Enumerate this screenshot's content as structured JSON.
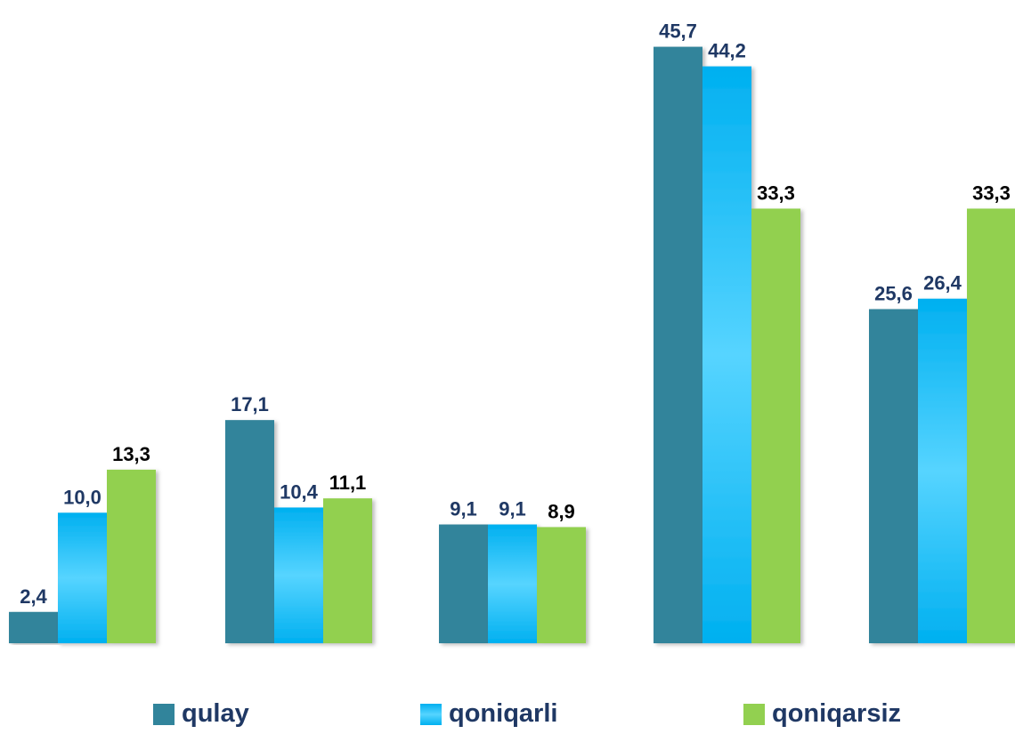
{
  "chart_data": {
    "type": "bar",
    "categories": [
      "",
      "",
      "",
      "",
      ""
    ],
    "series": [
      {
        "name": "qulay",
        "values": [
          2.4,
          17.1,
          9.1,
          45.7,
          25.6
        ],
        "labels": [
          "2,4",
          "17,1",
          "9,1",
          "45,7",
          "25,6"
        ],
        "color": "#31849b",
        "label_color": "#1f3864"
      },
      {
        "name": "qoniqarli",
        "values": [
          10.0,
          10.4,
          9.1,
          44.2,
          26.4
        ],
        "labels": [
          "10,0",
          "10,4",
          "9,1",
          "44,2",
          "26,4"
        ],
        "color": "#00b0f0",
        "label_color": "#1f3864"
      },
      {
        "name": "qoniqarsiz",
        "values": [
          13.3,
          11.1,
          8.9,
          33.3,
          33.3
        ],
        "labels": [
          "13,3",
          "11,1",
          "8,9",
          "33,3",
          "33,3"
        ],
        "color": "#92d050",
        "label_color": "#000000"
      }
    ],
    "title": "",
    "xlabel": "",
    "ylabel": "",
    "ylim": [
      0,
      50
    ],
    "grid": false,
    "legend_position": "bottom"
  }
}
